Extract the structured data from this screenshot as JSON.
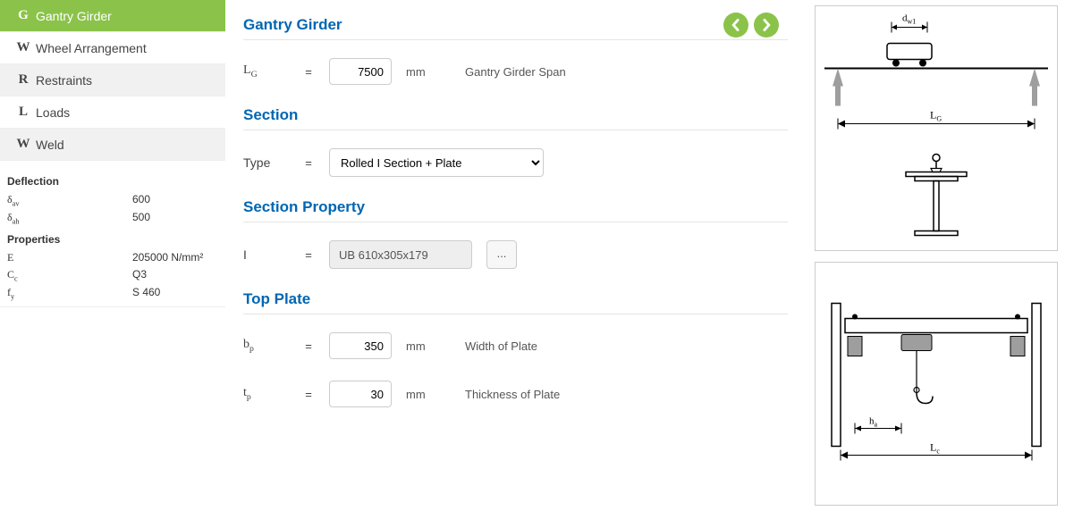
{
  "sidebar": {
    "items": [
      {
        "letter": "G",
        "label": "Gantry Girder",
        "active": true
      },
      {
        "letter": "W",
        "label": "Wheel Arrangement",
        "active": false
      },
      {
        "letter": "R",
        "label": "Restraints",
        "active": false
      },
      {
        "letter": "L",
        "label": "Loads",
        "active": false
      },
      {
        "letter": "W",
        "label": "Weld",
        "active": false
      }
    ],
    "deflection_heading": "Deflection",
    "deflection": [
      {
        "symbol_html": "δ<sub>av</sub>",
        "value": "600"
      },
      {
        "symbol_html": "δ<sub>ah</sub>",
        "value": "500"
      }
    ],
    "properties_heading": "Properties",
    "properties": [
      {
        "symbol_html": "E",
        "value": "205000 N/mm²"
      },
      {
        "symbol_html": "C<sub>c</sub>",
        "value": "Q3"
      },
      {
        "symbol_html": "f<sub>y</sub>",
        "value": "S 460"
      }
    ]
  },
  "main": {
    "titles": {
      "gantry": "Gantry Girder",
      "section": "Section",
      "section_property": "Section Property",
      "top_plate": "Top Plate"
    },
    "span": {
      "symbol_html": "L<sub>G</sub>",
      "eq": "=",
      "value": "7500",
      "unit": "mm",
      "desc": "Gantry Girder Span"
    },
    "section_type": {
      "label": "Type",
      "eq": "=",
      "value": "Rolled I Section + Plate"
    },
    "section_property": {
      "label": "I",
      "eq": "=",
      "value": "UB 610x305x179",
      "button": "..."
    },
    "top_plate": {
      "bp": {
        "symbol_html": "b<sub>p</sub>",
        "eq": "=",
        "value": "350",
        "unit": "mm",
        "desc": "Width of Plate"
      },
      "tp": {
        "symbol_html": "t<sub>p</sub>",
        "eq": "=",
        "value": "30",
        "unit": "mm",
        "desc": "Thickness of Plate"
      }
    }
  },
  "diagrams": {
    "top": {
      "dw1": "d",
      "dw1_sub": "w1",
      "LG": "L",
      "LG_sub": "G"
    },
    "bottom": {
      "ha": "h",
      "ha_sub": "a",
      "Lc": "L",
      "Lc_sub": "c"
    }
  },
  "colors": {
    "accent": "#8bc34a",
    "heading": "#0066b3",
    "border": "#cccccc",
    "gray_fill": "#9e9e9e"
  }
}
